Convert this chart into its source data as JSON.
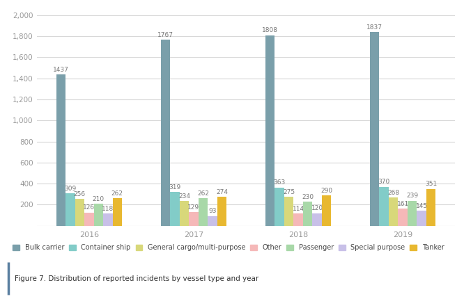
{
  "years": [
    "2016",
    "2017",
    "2018",
    "2019"
  ],
  "categories": [
    "Bulk carrier",
    "Container ship",
    "General cargo/multi-purpose",
    "Other",
    "Passenger",
    "Special purpose",
    "Tanker"
  ],
  "colors": [
    "#7a9faa",
    "#82ccc8",
    "#d8d87a",
    "#f5b8b8",
    "#a8d8a8",
    "#c8c0e8",
    "#e8b830"
  ],
  "values": {
    "Bulk carrier": [
      1437,
      1767,
      1808,
      1837
    ],
    "Container ship": [
      309,
      319,
      363,
      370
    ],
    "General cargo/multi-purpose": [
      256,
      234,
      275,
      268
    ],
    "Other": [
      126,
      129,
      114,
      161
    ],
    "Passenger": [
      210,
      262,
      230,
      239
    ],
    "Special purpose": [
      118,
      93,
      120,
      145
    ],
    "Tanker": [
      262,
      274,
      290,
      351
    ]
  },
  "ylim": [
    0,
    2000
  ],
  "yticks": [
    0,
    200,
    400,
    600,
    800,
    1000,
    1200,
    1400,
    1600,
    1800,
    2000
  ],
  "background_color": "#ffffff",
  "grid_color": "#d8d8d8",
  "bar_width": 0.09,
  "caption": "Figure 7. Distribution of reported incidents by vessel type and year",
  "label_fontsize": 6.5,
  "tick_fontsize": 7.5,
  "legend_fontsize": 7.0,
  "caption_fontsize": 7.5,
  "left_border_color": "#5a7fa0",
  "caption_color": "#333333",
  "tick_color": "#999999"
}
